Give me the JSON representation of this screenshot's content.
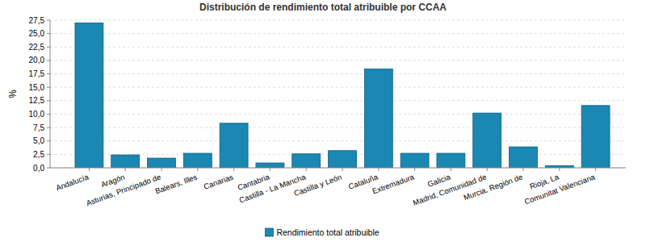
{
  "chart_data": {
    "type": "bar",
    "title": "Distribución de rendimiento total atribuible por CCAA",
    "y_label": "%",
    "categories": [
      "Andalucía",
      "Aragón",
      "Asturias, Principado de",
      "Balears, Illes",
      "Canarias",
      "Cantabria",
      "Castilla - La Mancha",
      "Castilla y León",
      "Cataluña",
      "Extremadura",
      "Galicia",
      "Madrid, Comunidad de",
      "Murcia, Región de",
      "Rioja, La",
      "Comunitat Valenciana"
    ],
    "series": [
      {
        "name": "Rendimiento total atribuible",
        "color": "#1b87b3",
        "values": [
          27.0,
          2.4,
          1.8,
          2.7,
          8.3,
          0.9,
          2.6,
          3.2,
          18.4,
          2.7,
          2.7,
          10.2,
          3.9,
          0.4,
          11.6
        ]
      }
    ],
    "ylim": [
      0,
      27.5
    ],
    "yticks": [
      {
        "value": 0,
        "label": "0,0"
      },
      {
        "value": 2.5,
        "label": "2,5"
      },
      {
        "value": 5,
        "label": "5,0"
      },
      {
        "value": 7.5,
        "label": "7,5"
      },
      {
        "value": 10,
        "label": "10,0"
      },
      {
        "value": 12.5,
        "label": "12,5"
      },
      {
        "value": 15,
        "label": "15,0"
      },
      {
        "value": 17.5,
        "label": "17,5"
      },
      {
        "value": 20,
        "label": "20,0"
      },
      {
        "value": 22.5,
        "label": "22,5"
      },
      {
        "value": 25,
        "label": "25,0"
      },
      {
        "value": 27.5,
        "label": "27,5"
      }
    ],
    "grid": true,
    "legend": "bottom"
  }
}
